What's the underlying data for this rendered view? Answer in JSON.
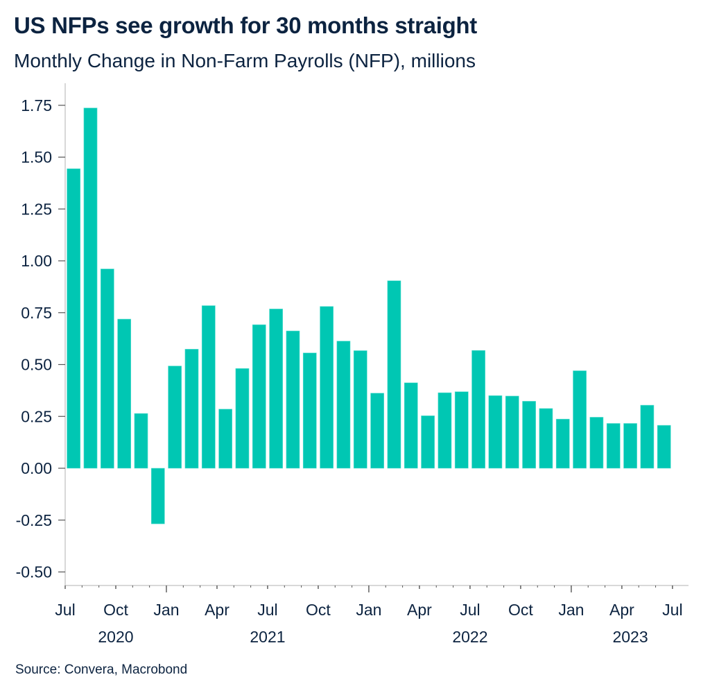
{
  "header": {
    "title": "US NFPs see growth for 30 months straight",
    "subtitle": "Monthly Change in Non-Farm Payrolls (NFP), millions"
  },
  "footer": {
    "source": "Source: Convera, Macrobond"
  },
  "colors": {
    "bar": "#00c7b3",
    "text": "#0c2340",
    "axis": "#cccccc",
    "tick": "#555555"
  },
  "chart_data": {
    "type": "bar",
    "title": "US NFPs see growth for 30 months straight",
    "subtitle": "Monthly Change in Non-Farm Payrolls (NFP), millions",
    "xlabel": "",
    "ylabel": "",
    "ylim": [
      -0.5,
      1.75
    ],
    "yticks": [
      1.75,
      1.5,
      1.25,
      1.0,
      0.75,
      0.5,
      0.25,
      0.0,
      -0.25,
      -0.5
    ],
    "ytick_labels": [
      "1.75",
      "1.50",
      "1.25",
      "1.00",
      "0.75",
      "0.50",
      "0.25",
      "0.00",
      "-0.25",
      "-0.50"
    ],
    "grid": false,
    "legend": "none",
    "x_tick_labels": [
      {
        "label": "Jul",
        "month_index": 0,
        "major": false
      },
      {
        "label": "Oct",
        "month_index": 3,
        "major": false
      },
      {
        "label": "Jan",
        "month_index": 6,
        "major": true
      },
      {
        "label": "Apr",
        "month_index": 9,
        "major": false
      },
      {
        "label": "Jul",
        "month_index": 12,
        "major": false
      },
      {
        "label": "Oct",
        "month_index": 15,
        "major": false
      },
      {
        "label": "Jan",
        "month_index": 18,
        "major": true
      },
      {
        "label": "Apr",
        "month_index": 21,
        "major": false
      },
      {
        "label": "Jul",
        "month_index": 24,
        "major": false
      },
      {
        "label": "Oct",
        "month_index": 27,
        "major": false
      },
      {
        "label": "Jan",
        "month_index": 30,
        "major": true
      },
      {
        "label": "Apr",
        "month_index": 33,
        "major": false
      },
      {
        "label": "Jul",
        "month_index": 36,
        "major": false
      }
    ],
    "year_labels": [
      {
        "label": "2020",
        "month_index": 3
      },
      {
        "label": "2021",
        "month_index": 12
      },
      {
        "label": "2022",
        "month_index": 24
      },
      {
        "label": "2023",
        "month_index": 33.5
      }
    ],
    "categories": [
      "2020-07",
      "2020-08",
      "2020-09",
      "2020-10",
      "2020-11",
      "2020-12",
      "2021-01",
      "2021-02",
      "2021-03",
      "2021-04",
      "2021-05",
      "2021-06",
      "2021-07",
      "2021-08",
      "2021-09",
      "2021-10",
      "2021-11",
      "2021-12",
      "2022-01",
      "2022-02",
      "2022-03",
      "2022-04",
      "2022-05",
      "2022-06",
      "2022-07",
      "2022-08",
      "2022-09",
      "2022-10",
      "2022-11",
      "2022-12",
      "2023-01",
      "2023-02",
      "2023-03",
      "2023-04",
      "2023-05",
      "2023-06"
    ],
    "values": [
      1.444,
      1.737,
      0.961,
      0.719,
      0.264,
      -0.268,
      0.493,
      0.574,
      0.784,
      0.285,
      0.481,
      0.692,
      0.768,
      0.662,
      0.556,
      0.78,
      0.613,
      0.567,
      0.362,
      0.904,
      0.412,
      0.253,
      0.364,
      0.369,
      0.568,
      0.35,
      0.348,
      0.323,
      0.288,
      0.237,
      0.47,
      0.246,
      0.216,
      0.216,
      0.304,
      0.207
    ]
  }
}
